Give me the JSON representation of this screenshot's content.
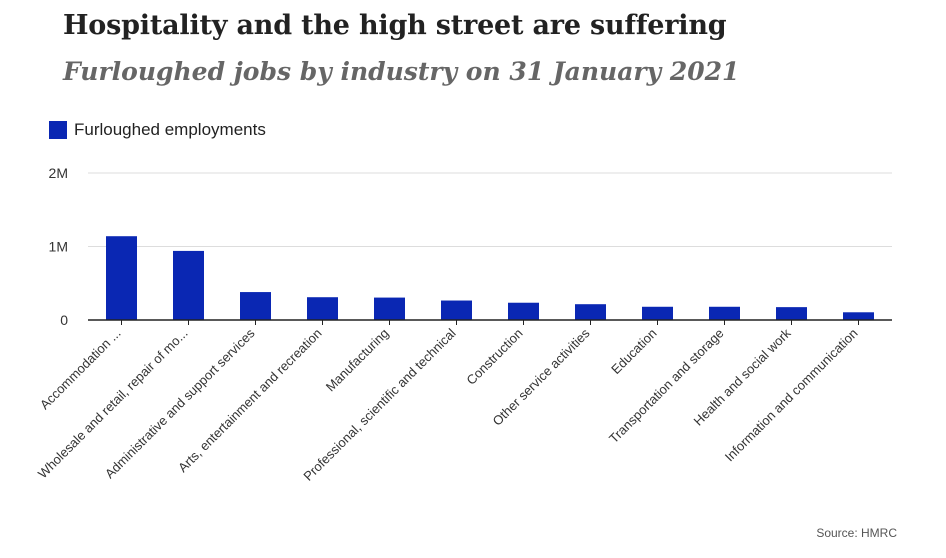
{
  "title": "Hospitality and the high street are suffering",
  "subtitle": "Furloughed jobs by industry on 31 January 2021",
  "source": "Source: HMRC",
  "colors": {
    "bar": "#0a27b3",
    "grid": "#dddddd",
    "axis": "#222222"
  },
  "chart_data": {
    "type": "bar",
    "categories": [
      "Accommodation ...",
      "Wholesale and retail, repair of mo...",
      "Administrative and support services",
      "Arts, entertainment and recreation",
      "Manufacturing",
      "Professional, scientific and technical",
      "Construction",
      "Other service activities",
      "Education",
      "Transportation and storage",
      "Health and social work",
      "Information and communication"
    ],
    "series": [
      {
        "name": "Furloughed employments",
        "values": [
          1140000,
          940000,
          380000,
          310000,
          305000,
          265000,
          235000,
          215000,
          180000,
          180000,
          175000,
          105000
        ]
      }
    ],
    "ylim": [
      0,
      2000000
    ],
    "yticks": [
      {
        "value": 0,
        "label": "0"
      },
      {
        "value": 1000000,
        "label": "1M"
      },
      {
        "value": 2000000,
        "label": "2M"
      }
    ],
    "grid": true,
    "legend_position": "top-left"
  }
}
